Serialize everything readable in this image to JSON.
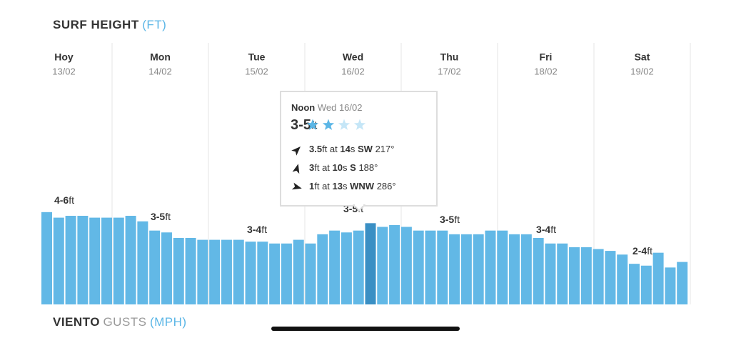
{
  "chart_data": {
    "type": "bar",
    "title": "SURF HEIGHT",
    "unit_label": "(FT)",
    "color": "#62b8e6",
    "highlight_color": "#3a8fc4",
    "highlight": 27,
    "ylim": [
      0,
      6
    ],
    "days": [
      {
        "name": "Hoy",
        "date": "13/02"
      },
      {
        "name": "Mon",
        "date": "14/02"
      },
      {
        "name": "Tue",
        "date": "15/02"
      },
      {
        "name": "Wed",
        "date": "16/02"
      },
      {
        "name": "Thu",
        "date": "17/02"
      },
      {
        "name": "Fri",
        "date": "18/02"
      },
      {
        "name": "Sat",
        "date": "19/02"
      }
    ],
    "values": [
      5.0,
      4.7,
      4.8,
      4.8,
      4.7,
      4.7,
      4.7,
      4.8,
      4.5,
      4.0,
      3.9,
      3.6,
      3.6,
      3.5,
      3.5,
      3.5,
      3.5,
      3.4,
      3.4,
      3.3,
      3.3,
      3.5,
      3.3,
      3.8,
      4.0,
      3.9,
      4.0,
      4.4,
      4.2,
      4.3,
      4.2,
      4.0,
      4.0,
      4.0,
      3.8,
      3.8,
      3.8,
      4.0,
      4.0,
      3.8,
      3.8,
      3.6,
      3.3,
      3.3,
      3.1,
      3.1,
      3.0,
      2.9,
      2.7,
      2.2,
      2.1,
      2.8,
      2.0,
      2.3
    ],
    "annotations": [
      {
        "range": "4-6",
        "unit": "ft"
      },
      {
        "range": "3-5",
        "unit": "ft"
      },
      {
        "range": "3-4",
        "unit": "ft"
      },
      {
        "range": "3-5",
        "unit": "ft"
      },
      {
        "range": "3-5",
        "unit": "ft"
      },
      {
        "range": "3-4",
        "unit": "ft"
      },
      {
        "range": "2-4",
        "unit": "ft"
      }
    ],
    "tooltip": {
      "time": "Noon",
      "date": "Wed 16/02",
      "range": "3-5",
      "unit": "ft",
      "rating": 2,
      "rating_max": 4,
      "swells": [
        {
          "height": "3.5",
          "unit": "ft at",
          "period": "14",
          "period_unit": "s",
          "direction": "SW",
          "degrees": "217°"
        },
        {
          "height": "3",
          "unit": "ft at",
          "period": "10",
          "period_unit": "s",
          "direction": "S",
          "degrees": "188°"
        },
        {
          "height": "1",
          "unit": "ft at",
          "period": "13",
          "period_unit": "s",
          "direction": "WNW",
          "degrees": "286°"
        }
      ]
    },
    "next_section": {
      "title": "VIENTO",
      "subtitle": "GUSTS",
      "unit_label": "(MPH)"
    }
  }
}
